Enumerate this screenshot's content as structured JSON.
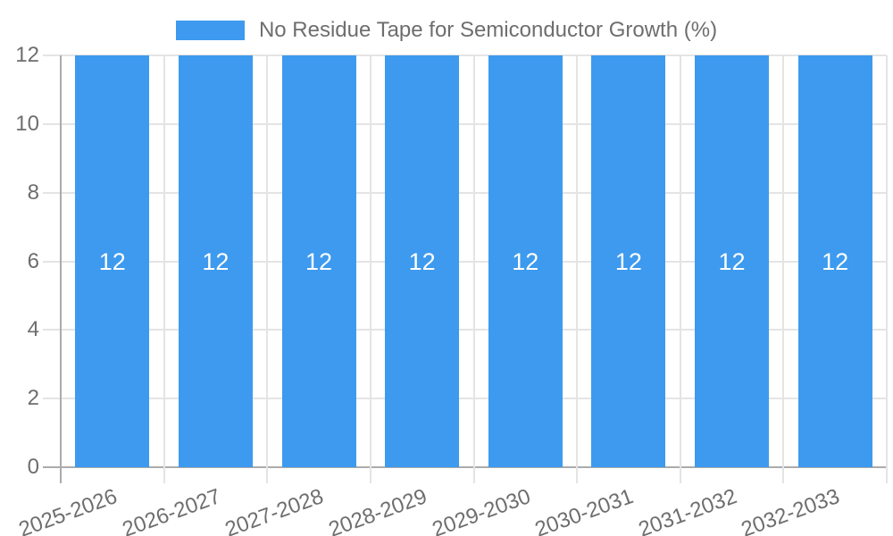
{
  "chart_data": {
    "type": "bar",
    "title": "No Residue Tape for Semiconductor Growth (%)",
    "categories": [
      "2025-2026",
      "2026-2027",
      "2027-2028",
      "2028-2029",
      "2029-2030",
      "2030-2031",
      "2031-2032",
      "2032-2033"
    ],
    "values": [
      12,
      12,
      12,
      12,
      12,
      12,
      12,
      12
    ],
    "bar_value_labels": [
      "12",
      "12",
      "12",
      "12",
      "12",
      "12",
      "12",
      "12"
    ],
    "xlabel": "",
    "ylabel": "",
    "ylim": [
      0,
      12
    ],
    "yticks": [
      0,
      2,
      4,
      6,
      8,
      10,
      12
    ],
    "legend_position": "top",
    "grid": true,
    "x_label_rotation_deg": -20,
    "colors": {
      "bar": "#3D9AEE",
      "bar_value_label": "#ffffff",
      "axis_text": "#6e6e6e",
      "gridline": "#e4e4e4",
      "axis_line": "#ababab",
      "background": "#ffffff"
    }
  }
}
